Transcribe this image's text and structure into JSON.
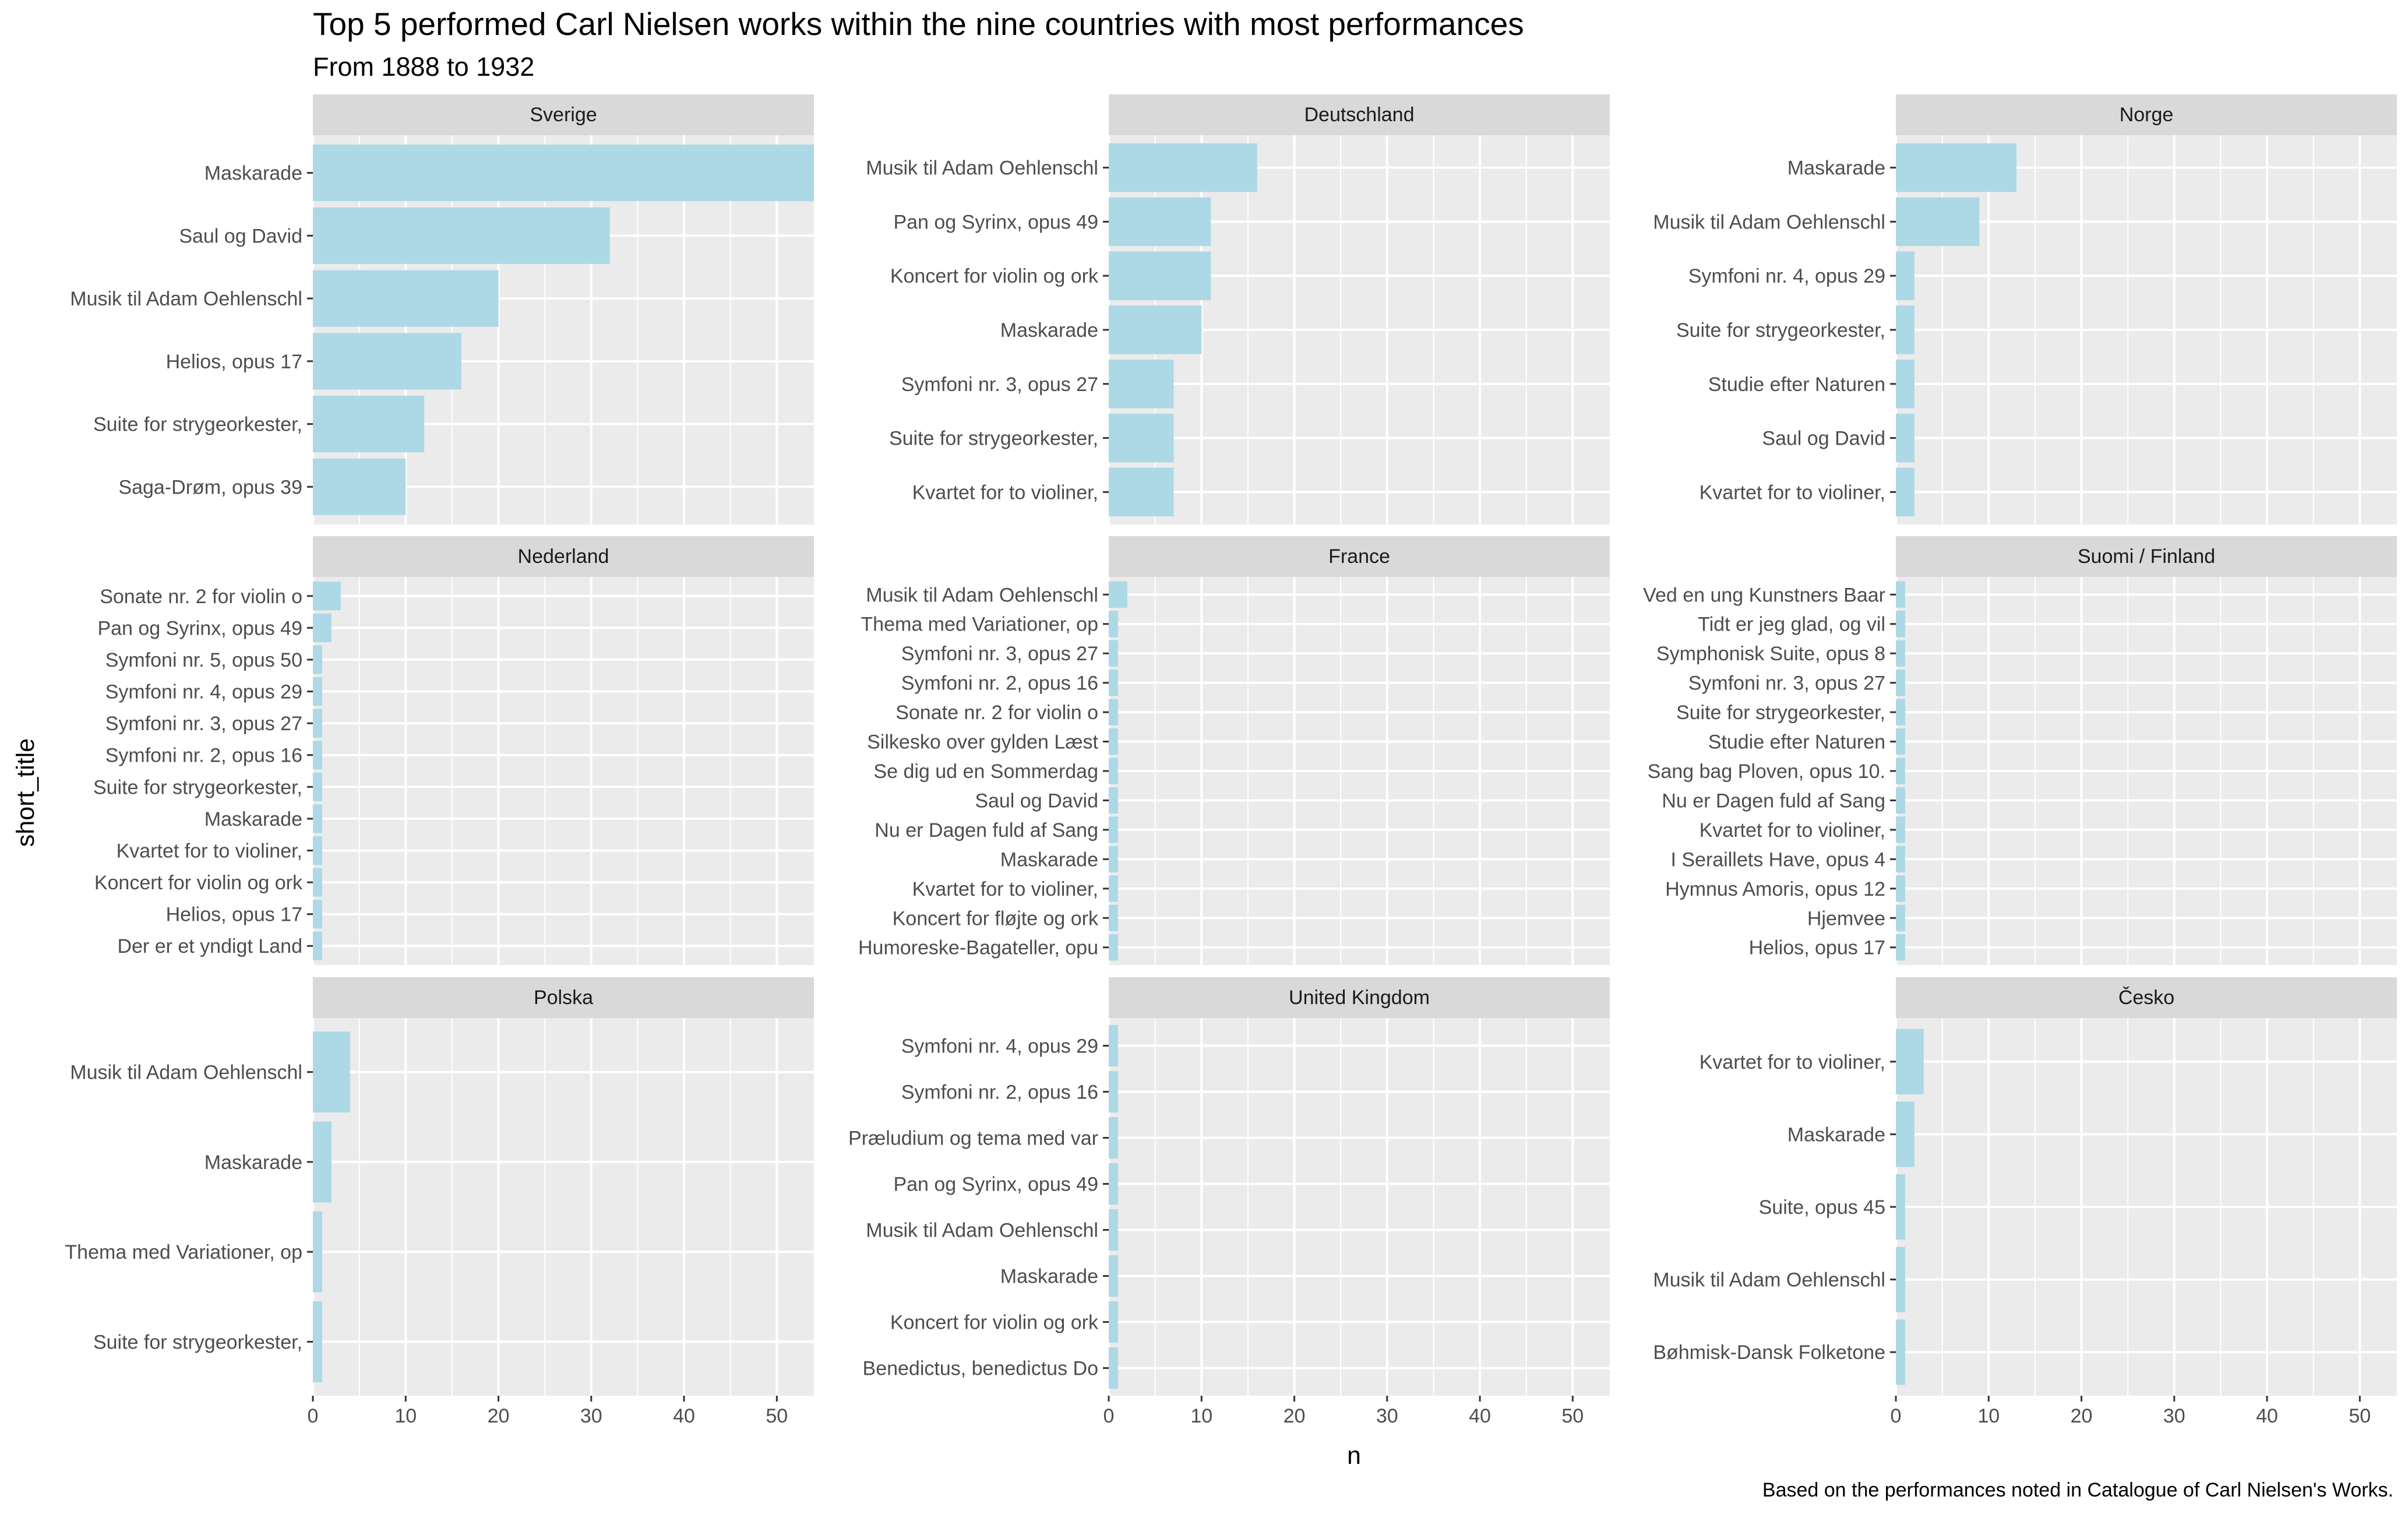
{
  "chart_data": {
    "type": "bar",
    "title": "Top 5 performed Carl Nielsen works within the nine countries with most performances",
    "subtitle": "From 1888 to 1932",
    "xlabel": "n",
    "ylabel": "short_title",
    "caption": "Based on the performances noted in Catalogue of Carl Nielsen's Works.",
    "xlim": [
      0,
      54
    ],
    "x_ticks": [
      "0",
      "10",
      "20",
      "30",
      "40",
      "50"
    ],
    "bar_color": "#ADD8E6",
    "panel_background": "#EBEBEB",
    "strip_background": "#D9D9D9",
    "grid": true,
    "orientation": "horizontal",
    "facets": [
      {
        "name": "Sverige",
        "categories": [
          "Maskarade",
          "Saul og David",
          "Musik til Adam Oehlenschl",
          "Helios, opus 17",
          "Suite for strygeorkester,",
          "Saga-Drøm, opus 39"
        ],
        "values": [
          54,
          32,
          20,
          16,
          12,
          10
        ]
      },
      {
        "name": "Deutschland",
        "categories": [
          "Musik til Adam Oehlenschl",
          "Pan og Syrinx, opus 49",
          "Koncert for violin og ork",
          "Maskarade",
          "Symfoni nr. 3, opus 27",
          "Suite for strygeorkester,",
          "Kvartet for to violiner, "
        ],
        "values": [
          16,
          11,
          11,
          10,
          7,
          7,
          7
        ]
      },
      {
        "name": "Norge",
        "categories": [
          "Maskarade",
          "Musik til Adam Oehlenschl",
          "Symfoni nr. 4, opus 29",
          "Suite for strygeorkester,",
          "Studie efter Naturen",
          "Saul og David",
          "Kvartet for to violiner, "
        ],
        "values": [
          13,
          9,
          2,
          2,
          2,
          2,
          2
        ]
      },
      {
        "name": "Nederland",
        "categories": [
          "Sonate nr. 2 for violin o",
          "Pan og Syrinx, opus 49",
          "Symfoni nr. 5, opus 50",
          "Symfoni nr. 4, opus 29",
          "Symfoni nr. 3, opus 27",
          "Symfoni nr. 2, opus 16",
          "Suite for strygeorkester,",
          "Maskarade",
          "Kvartet for to violiner, ",
          "Koncert for violin og ork",
          "Helios, opus 17",
          "Der er et yndigt Land"
        ],
        "values": [
          3,
          2,
          1,
          1,
          1,
          1,
          1,
          1,
          1,
          1,
          1,
          1
        ]
      },
      {
        "name": "France",
        "categories": [
          "Musik til Adam Oehlenschl",
          "Thema med Variationer, op",
          "Symfoni nr. 3, opus 27",
          "Symfoni nr. 2, opus 16",
          "Sonate nr. 2 for violin o",
          "Silkesko over gylden Læst",
          "Se dig ud en Sommerdag",
          "Saul og David",
          "Nu er Dagen fuld af Sang",
          "Maskarade",
          "Kvartet for to violiner, ",
          "Koncert for fløjte og ork",
          "Humoreske-Bagateller, opu"
        ],
        "values": [
          2,
          1,
          1,
          1,
          1,
          1,
          1,
          1,
          1,
          1,
          1,
          1,
          1
        ]
      },
      {
        "name": "Suomi / Finland",
        "categories": [
          "Ved en ung Kunstners Baar",
          "Tidt er jeg glad, og vil ",
          "Symphonisk Suite, opus 8",
          "Symfoni nr. 3, opus 27",
          "Suite for strygeorkester,",
          "Studie efter Naturen",
          "Sang bag Ploven, opus 10.",
          "Nu er Dagen fuld af Sang",
          "Kvartet for to violiner, ",
          "I Seraillets Have, opus 4",
          "Hymnus Amoris, opus 12",
          "Hjemvee",
          "Helios, opus 17"
        ],
        "values": [
          1,
          1,
          1,
          1,
          1,
          1,
          1,
          1,
          1,
          1,
          1,
          1,
          1
        ]
      },
      {
        "name": "Polska",
        "categories": [
          "Musik til Adam Oehlenschl",
          "Maskarade",
          "Thema med Variationer, op",
          "Suite for strygeorkester,"
        ],
        "values": [
          4,
          2,
          1,
          1
        ]
      },
      {
        "name": "United Kingdom",
        "categories": [
          "Symfoni nr. 4, opus 29",
          "Symfoni nr. 2, opus 16",
          "Præludium og tema med var",
          "Pan og Syrinx, opus 49",
          "Musik til Adam Oehlenschl",
          "Maskarade",
          "Koncert for violin og ork",
          "Benedictus, benedictus Do"
        ],
        "values": [
          1,
          1,
          1,
          1,
          1,
          1,
          1,
          1
        ]
      },
      {
        "name": "Česko",
        "categories": [
          "Kvartet for to violiner, ",
          "Maskarade",
          "Suite, opus 45",
          "Musik til Adam Oehlenschl",
          "Bøhmisk-Dansk Folketone"
        ],
        "values": [
          3,
          2,
          1,
          1,
          1
        ]
      }
    ]
  }
}
